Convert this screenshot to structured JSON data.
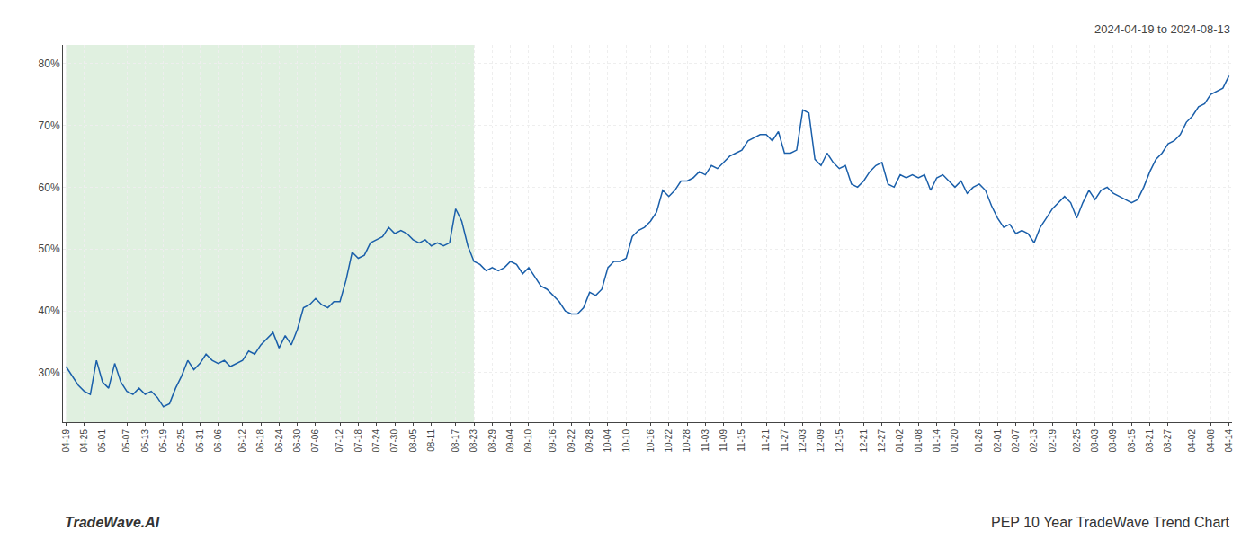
{
  "chart_data": {
    "type": "line",
    "title": "PEP 10 Year TradeWave Trend Chart",
    "subtitle": "2024-04-19 to 2024-08-13",
    "annotations": [
      "TradeWave.AI"
    ],
    "color": "#1a5faa",
    "grid": true,
    "ylim": [
      22,
      83
    ],
    "yticks": [
      {
        "value": 30,
        "label": "30%"
      },
      {
        "value": 40,
        "label": "40%"
      },
      {
        "value": 50,
        "label": "50%"
      },
      {
        "value": 60,
        "label": "60%"
      },
      {
        "value": 70,
        "label": "70%"
      },
      {
        "value": 80,
        "label": "80%"
      }
    ],
    "shade": {
      "start": "04-19",
      "end": "08-23",
      "color": "#d0e8d0"
    },
    "categories": [
      "04-19",
      null,
      null,
      "04-25",
      null,
      null,
      "05-01",
      null,
      null,
      null,
      "05-07",
      null,
      null,
      "05-13",
      null,
      null,
      "05-19",
      null,
      null,
      "05-25",
      null,
      null,
      "05-31",
      null,
      null,
      "06-06",
      null,
      null,
      null,
      "06-12",
      null,
      null,
      "06-18",
      null,
      null,
      "06-24",
      null,
      null,
      "06-30",
      null,
      null,
      "07-06",
      null,
      null,
      null,
      "07-12",
      null,
      null,
      "07-18",
      null,
      null,
      "07-24",
      null,
      null,
      "07-30",
      null,
      null,
      "08-05",
      null,
      null,
      "08-11",
      null,
      null,
      null,
      "08-17",
      null,
      null,
      "08-23",
      null,
      null,
      "08-29",
      null,
      null,
      "09-04",
      null,
      null,
      "09-10",
      null,
      null,
      null,
      "09-16",
      null,
      null,
      "09-22",
      null,
      null,
      "09-28",
      null,
      null,
      "10-04",
      null,
      null,
      "10-10",
      null,
      null,
      null,
      "10-16",
      null,
      null,
      "10-22",
      null,
      null,
      "10-28",
      null,
      null,
      "11-03",
      null,
      null,
      "11-09",
      null,
      null,
      "11-15",
      null,
      null,
      null,
      "11-21",
      null,
      null,
      "11-27",
      null,
      null,
      "12-03",
      null,
      null,
      "12-09",
      null,
      null,
      "12-15",
      null,
      null,
      null,
      "12-21",
      null,
      null,
      "12-27",
      null,
      null,
      "01-02",
      null,
      null,
      "01-08",
      null,
      null,
      "01-14",
      null,
      null,
      "01-20",
      null,
      null,
      null,
      "01-26",
      null,
      null,
      "02-01",
      null,
      null,
      "02-07",
      null,
      null,
      "02-13",
      null,
      null,
      "02-19",
      null,
      null,
      null,
      "02-25",
      null,
      null,
      "03-03",
      null,
      null,
      "03-09",
      null,
      null,
      "03-15",
      null,
      null,
      "03-21",
      null,
      null,
      "03-27",
      null,
      null,
      null,
      "04-02",
      null,
      null,
      "04-08",
      null,
      null,
      "04-14"
    ],
    "values": [
      31.0,
      29.5,
      28.0,
      27.0,
      26.5,
      32.0,
      28.5,
      27.5,
      31.5,
      28.5,
      27.0,
      26.5,
      27.5,
      26.5,
      27.0,
      26.0,
      24.5,
      25.0,
      27.5,
      29.5,
      32.0,
      30.5,
      31.5,
      33.0,
      32.0,
      31.5,
      32.0,
      31.0,
      31.5,
      32.0,
      33.5,
      33.0,
      34.5,
      35.5,
      36.5,
      34.0,
      36.0,
      34.5,
      37.0,
      40.5,
      41.0,
      42.0,
      41.0,
      40.5,
      41.5,
      41.5,
      45.0,
      49.5,
      48.5,
      49.0,
      51.0,
      51.5,
      52.0,
      53.5,
      52.5,
      53.0,
      52.5,
      51.5,
      51.0,
      51.5,
      50.5,
      51.0,
      50.5,
      51.0,
      56.5,
      54.5,
      50.5,
      48.0,
      47.5,
      46.5,
      47.0,
      46.5,
      47.0,
      48.0,
      47.5,
      46.0,
      47.0,
      45.5,
      44.0,
      43.5,
      42.5,
      41.5,
      40.0,
      39.5,
      39.5,
      40.5,
      43.0,
      42.5,
      43.5,
      47.0,
      48.0,
      48.0,
      48.5,
      52.0,
      53.0,
      53.5,
      54.5,
      56.0,
      59.5,
      58.5,
      59.5,
      61.0,
      61.0,
      61.5,
      62.5,
      62.0,
      63.5,
      63.0,
      64.0,
      65.0,
      65.5,
      66.0,
      67.5,
      68.0,
      68.5,
      68.5,
      67.5,
      69.0,
      65.5,
      65.5,
      66.0,
      72.5,
      72.0,
      64.5,
      63.5,
      65.5,
      64.0,
      63.0,
      63.5,
      60.5,
      60.0,
      61.0,
      62.5,
      63.5,
      64.0,
      60.5,
      60.0,
      62.0,
      61.5,
      62.0,
      61.5,
      62.0,
      59.5,
      61.5,
      62.0,
      61.0,
      60.0,
      61.0,
      59.0,
      60.0,
      60.5,
      59.5,
      57.0,
      55.0,
      53.5,
      54.0,
      52.5,
      53.0,
      52.5,
      51.0,
      53.5,
      55.0,
      56.5,
      57.5,
      58.5,
      57.5,
      55.0,
      57.5,
      59.5,
      58.0,
      59.5,
      60.0,
      59.0,
      58.5,
      58.0,
      57.5,
      58.0,
      60.0,
      62.5,
      64.5,
      65.5,
      67.0,
      67.5,
      68.5,
      70.5,
      71.5,
      73.0,
      73.5,
      75.0,
      75.5,
      76.0,
      78.0
    ]
  }
}
